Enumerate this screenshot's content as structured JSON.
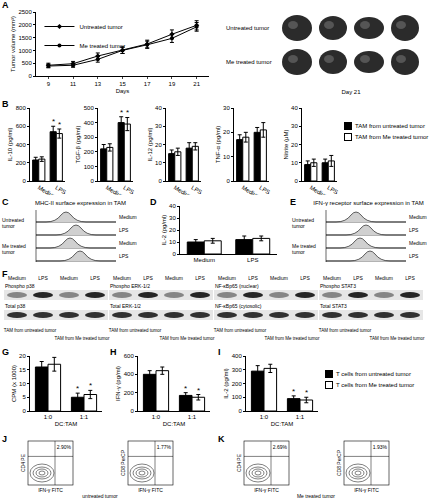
{
  "panel_labels": [
    "A",
    "B",
    "C",
    "D",
    "E",
    "F",
    "G",
    "H",
    "I",
    "J",
    "K"
  ],
  "chart_data": [
    {
      "type": "line",
      "x": [
        9,
        11,
        13,
        15,
        17,
        19,
        21
      ],
      "xlabel": "Days",
      "ylabel": "Tumor volume (mm³)",
      "xlim": [
        8,
        22
      ],
      "xticks": [
        9,
        11,
        13,
        15,
        17,
        19,
        21
      ],
      "ylim": [
        0,
        2500
      ],
      "yticks": [
        0,
        500,
        1000,
        1500,
        2000,
        2500
      ],
      "legend": "top-left",
      "series": [
        {
          "name": "Untreated tumor",
          "color": "#000000",
          "marker": "diamond",
          "values": [
            420,
            480,
            780,
            1010,
            1250,
            1630,
            1980
          ],
          "errors": [
            80,
            90,
            120,
            130,
            150,
            170,
            180
          ]
        },
        {
          "name": "Me treated tumor",
          "color": "#000000",
          "marker": "circle",
          "values": [
            390,
            420,
            650,
            1000,
            1220,
            1470,
            1920
          ],
          "errors": [
            70,
            80,
            110,
            120,
            140,
            160,
            170
          ]
        }
      ]
    },
    {
      "type": "bar",
      "categories": [
        "Medium",
        "LPS"
      ],
      "ylabel": "IL-10 (pg/ml)",
      "ylim": [
        0,
        800
      ],
      "yticks": [
        0,
        200,
        400,
        600,
        800
      ],
      "series": [
        {
          "name": "TAM from untreated tumor",
          "color": "#000000",
          "values": [
            230,
            540
          ],
          "errors": [
            30,
            60
          ]
        },
        {
          "name": "TAM from Me treated tumor",
          "color": "#ffffff",
          "values": [
            240,
            520
          ],
          "errors": [
            25,
            50
          ]
        }
      ],
      "annotations": [
        {
          "category_index": 1,
          "series_index": 0,
          "text": "*"
        },
        {
          "category_index": 1,
          "series_index": 1,
          "text": "*"
        }
      ]
    },
    {
      "type": "bar",
      "categories": [
        "Medium",
        "LPS"
      ],
      "ylabel": "TGF-β (pg/ml)",
      "ylim": [
        0,
        500
      ],
      "yticks": [
        0,
        100,
        200,
        300,
        400,
        500
      ],
      "series": [
        {
          "name": "TAM from untreated tumor",
          "color": "#000000",
          "values": [
            220,
            400
          ],
          "errors": [
            30,
            40
          ]
        },
        {
          "name": "TAM from Me treated tumor",
          "color": "#ffffff",
          "values": [
            230,
            390
          ],
          "errors": [
            25,
            45
          ]
        }
      ],
      "annotations": [
        {
          "category_index": 1,
          "series_index": 0,
          "text": "*"
        },
        {
          "category_index": 1,
          "series_index": 1,
          "text": "*"
        }
      ]
    },
    {
      "type": "bar",
      "categories": [
        "Medium",
        "LPS"
      ],
      "ylabel": "IL-12 (pg/ml)",
      "ylim": [
        0,
        40
      ],
      "yticks": [
        0,
        10,
        20,
        30,
        40
      ],
      "series": [
        {
          "name": "TAM from untreated tumor",
          "color": "#000000",
          "values": [
            15,
            18
          ],
          "errors": [
            2,
            3
          ]
        },
        {
          "name": "TAM from Me treated tumor",
          "color": "#ffffff",
          "values": [
            16,
            19
          ],
          "errors": [
            2,
            2
          ]
        }
      ]
    },
    {
      "type": "bar",
      "categories": [
        "Medium",
        "LPS"
      ],
      "ylabel": "TNF-α (pg/ml)",
      "ylim": [
        0,
        30
      ],
      "yticks": [
        0,
        10,
        20,
        30
      ],
      "series": [
        {
          "name": "TAM from untreated tumor",
          "color": "#000000",
          "values": [
            17,
            20
          ],
          "errors": [
            2,
            2
          ]
        },
        {
          "name": "TAM from Me treated tumor",
          "color": "#ffffff",
          "values": [
            18,
            21
          ],
          "errors": [
            2,
            3
          ]
        }
      ]
    },
    {
      "type": "bar",
      "categories": [
        "Medium",
        "LPS"
      ],
      "ylabel": "Nitrite (μM)",
      "ylim": [
        0,
        40
      ],
      "yticks": [
        0,
        10,
        20,
        30,
        40
      ],
      "legend": "right",
      "series": [
        {
          "name": "TAM from untreated tumor",
          "color": "#000000",
          "values": [
            9,
            10
          ],
          "errors": [
            2,
            2
          ]
        },
        {
          "name": "TAM from Me treated tumor",
          "color": "#ffffff",
          "values": [
            10,
            11
          ],
          "errors": [
            2,
            3
          ]
        }
      ]
    },
    {
      "type": "bar",
      "categories": [
        "Medium",
        "LPS"
      ],
      "ylabel": "IL-2 (pg/ml)",
      "ylim": [
        0,
        40
      ],
      "yticks": [
        0,
        10,
        20,
        30,
        40
      ],
      "series": [
        {
          "name": "TAM from untreated tumor",
          "color": "#000000",
          "values": [
            10,
            12
          ],
          "errors": [
            2,
            3
          ]
        },
        {
          "name": "TAM from Me treated tumor",
          "color": "#ffffff",
          "values": [
            11,
            13
          ],
          "errors": [
            2,
            2
          ]
        }
      ]
    },
    {
      "type": "bar",
      "categories": [
        "1:0",
        "1:1"
      ],
      "xlabel": "DC:TAM",
      "ylabel": "CPM (x 1000)",
      "ylim": [
        0,
        20
      ],
      "yticks": [
        0,
        5,
        10,
        15,
        20
      ],
      "series": [
        {
          "name": "T cells from untreated tumor",
          "color": "#000000",
          "values": [
            16,
            5
          ],
          "errors": [
            2,
            1.5
          ]
        },
        {
          "name": "T cells from Me treated tumor",
          "color": "#ffffff",
          "values": [
            17,
            6
          ],
          "errors": [
            2.5,
            1.5
          ]
        }
      ],
      "annotations": [
        {
          "category_index": 1,
          "series_index": 0,
          "text": "*"
        },
        {
          "category_index": 1,
          "series_index": 1,
          "text": "*"
        }
      ]
    },
    {
      "type": "bar",
      "categories": [
        "1:0",
        "1:1"
      ],
      "xlabel": "DC:TAM",
      "ylabel": "IFN-γ (pg/ml)",
      "ylim": [
        0,
        600
      ],
      "yticks": [
        0,
        200,
        400,
        600
      ],
      "series": [
        {
          "name": "T cells from untreated tumor",
          "color": "#000000",
          "values": [
            400,
            170
          ],
          "errors": [
            40,
            30
          ]
        },
        {
          "name": "T cells from Me treated tumor",
          "color": "#ffffff",
          "values": [
            440,
            150
          ],
          "errors": [
            40,
            30
          ]
        }
      ],
      "annotations": [
        {
          "category_index": 1,
          "series_index": 0,
          "text": "*"
        },
        {
          "category_index": 1,
          "series_index": 1,
          "text": "*"
        }
      ]
    },
    {
      "type": "bar",
      "categories": [
        "1:0",
        "1:1"
      ],
      "xlabel": "DC:TAM",
      "ylabel": "IL-2 (pg/ml)",
      "ylim": [
        0,
        400
      ],
      "yticks": [
        0,
        100,
        200,
        300,
        400
      ],
      "legend": "right",
      "series": [
        {
          "name": "T cells from untreated tumor",
          "color": "#000000",
          "values": [
            290,
            90
          ],
          "errors": [
            40,
            20
          ]
        },
        {
          "name": "T cells from Me treated tumor",
          "color": "#ffffff",
          "values": [
            310,
            80
          ],
          "errors": [
            30,
            20
          ]
        }
      ],
      "annotations": [
        {
          "category_index": 1,
          "series_index": 0,
          "text": "*"
        },
        {
          "category_index": 1,
          "series_index": 1,
          "text": "*"
        }
      ]
    }
  ],
  "tumor_images": {
    "rows": [
      "Untreated tumor",
      "Me treated tumor"
    ],
    "caption": "Day 21"
  },
  "histograms": [
    {
      "title": "MHC-II surface expression in TAM",
      "groups": [
        "Untreated tumor",
        "Me treated tumor"
      ],
      "rows": [
        "Medium",
        "LPS"
      ]
    },
    {
      "title": "IFN-γ receptor surface expression in TAM",
      "groups": [
        "Untreated tumor",
        "Me treated tumor"
      ],
      "rows": [
        "Medium",
        "LPS"
      ]
    }
  ],
  "blots": {
    "columns": [
      "Medium",
      "LPS",
      "Medium",
      "LPS"
    ],
    "groups": [
      "TAM from untreated tumor",
      "TAM from Me treated tumor"
    ],
    "panels": [
      {
        "labels": [
          "Phospho p38",
          "Total p38"
        ]
      },
      {
        "labels": [
          "Phospho ERK-1/2",
          "Total ERK-1/2"
        ]
      },
      {
        "labels": [
          "NF-κBp65 (nuclear)",
          "NF-κBp65 (cytosolic)"
        ]
      },
      {
        "labels": [
          "Phospho STAT3",
          "Total STAT3"
        ]
      }
    ]
  },
  "flow": [
    {
      "caption": "untreated tumor",
      "plots": [
        {
          "x_label": "IFN-γ FITC",
          "y_label": "CD4 PE",
          "percent": "2.90%"
        },
        {
          "x_label": "IFN-γ FITC",
          "y_label": "CD8 PerCP",
          "percent": "1.77%"
        }
      ]
    },
    {
      "caption": "Me treated tumor",
      "plots": [
        {
          "x_label": "IFN-γ FITC",
          "y_label": "CD4 PE",
          "percent": "2.69%"
        },
        {
          "x_label": "IFN-γ FITC",
          "y_label": "CD8 PerCP",
          "percent": "1.93%"
        }
      ]
    }
  ]
}
